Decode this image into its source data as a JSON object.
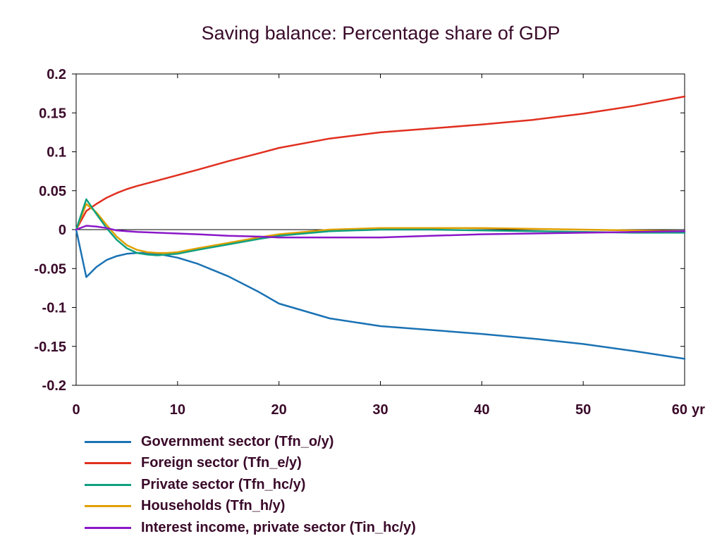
{
  "chart_data": {
    "type": "line",
    "title": "Saving balance: Percentage share of GDP",
    "xlabel": "",
    "ylabel": "",
    "x_unit": "yr",
    "xlim": [
      0,
      60
    ],
    "ylim": [
      -0.2,
      0.2
    ],
    "x_ticks": [
      "0",
      "10",
      "20",
      "30",
      "40",
      "50",
      "60"
    ],
    "y_ticks": [
      "0.2",
      "0.15",
      "0.1",
      "0.05",
      "0",
      "-0.05",
      "-0.1",
      "-0.15",
      "-0.2"
    ],
    "zero_line": true,
    "grid": false,
    "legend_position": "bottom",
    "series": [
      {
        "name": "Government sector (Tfn_o/y)",
        "color": "#1a72b4",
        "x": [
          0,
          1,
          2,
          3,
          4,
          5,
          6,
          7,
          8,
          10,
          12,
          15,
          18,
          20,
          25,
          30,
          35,
          40,
          45,
          50,
          55,
          60
        ],
        "y": [
          0,
          -0.061,
          -0.048,
          -0.039,
          -0.034,
          -0.031,
          -0.03,
          -0.03,
          -0.031,
          -0.036,
          -0.044,
          -0.06,
          -0.08,
          -0.095,
          -0.114,
          -0.124,
          -0.129,
          -0.134,
          -0.14,
          -0.147,
          -0.156,
          -0.166
        ]
      },
      {
        "name": "Foreign sector (Tfn_e/y)",
        "color": "#e03020",
        "x": [
          0,
          1,
          2,
          3,
          4,
          5,
          6,
          8,
          10,
          12,
          15,
          18,
          20,
          25,
          30,
          35,
          40,
          45,
          50,
          55,
          60
        ],
        "y": [
          0,
          0.024,
          0.033,
          0.041,
          0.047,
          0.052,
          0.056,
          0.063,
          0.07,
          0.077,
          0.088,
          0.098,
          0.105,
          0.117,
          0.125,
          0.13,
          0.135,
          0.141,
          0.149,
          0.159,
          0.171
        ]
      },
      {
        "name": "Private sector (Tfn_hc/y)",
        "color": "#10a080",
        "x": [
          0,
          1,
          2,
          3,
          4,
          5,
          6,
          7,
          8,
          9,
          10,
          12,
          15,
          18,
          20,
          25,
          30,
          35,
          40,
          45,
          50,
          55,
          60
        ],
        "y": [
          0,
          0.039,
          0.02,
          0.002,
          -0.013,
          -0.024,
          -0.03,
          -0.032,
          -0.033,
          -0.032,
          -0.031,
          -0.026,
          -0.019,
          -0.012,
          -0.008,
          -0.002,
          0.0,
          0.0,
          -0.001,
          -0.002,
          -0.003,
          -0.004,
          -0.004
        ]
      },
      {
        "name": "Households (Tfn_h/y)",
        "color": "#e0a000",
        "x": [
          0,
          1,
          2,
          3,
          4,
          5,
          6,
          7,
          8,
          9,
          10,
          12,
          15,
          18,
          20,
          25,
          30,
          35,
          40,
          45,
          50,
          55,
          60
        ],
        "y": [
          0,
          0.033,
          0.022,
          0.006,
          -0.009,
          -0.02,
          -0.026,
          -0.029,
          -0.03,
          -0.03,
          -0.029,
          -0.024,
          -0.017,
          -0.01,
          -0.006,
          0.0,
          0.002,
          0.002,
          0.002,
          0.001,
          0.0,
          -0.001,
          -0.002
        ]
      },
      {
        "name": "Interest income, private sector (Tin_hc/y)",
        "color": "#8a18c8",
        "x": [
          0,
          1,
          2,
          3,
          4,
          5,
          6,
          8,
          10,
          12,
          15,
          18,
          20,
          25,
          30,
          35,
          40,
          45,
          50,
          55,
          60
        ],
        "y": [
          0,
          0.005,
          0.004,
          0.002,
          -0.001,
          -0.002,
          -0.003,
          -0.004,
          -0.005,
          -0.006,
          -0.008,
          -0.009,
          -0.01,
          -0.01,
          -0.01,
          -0.008,
          -0.006,
          -0.005,
          -0.004,
          -0.003,
          -0.002
        ]
      }
    ]
  }
}
